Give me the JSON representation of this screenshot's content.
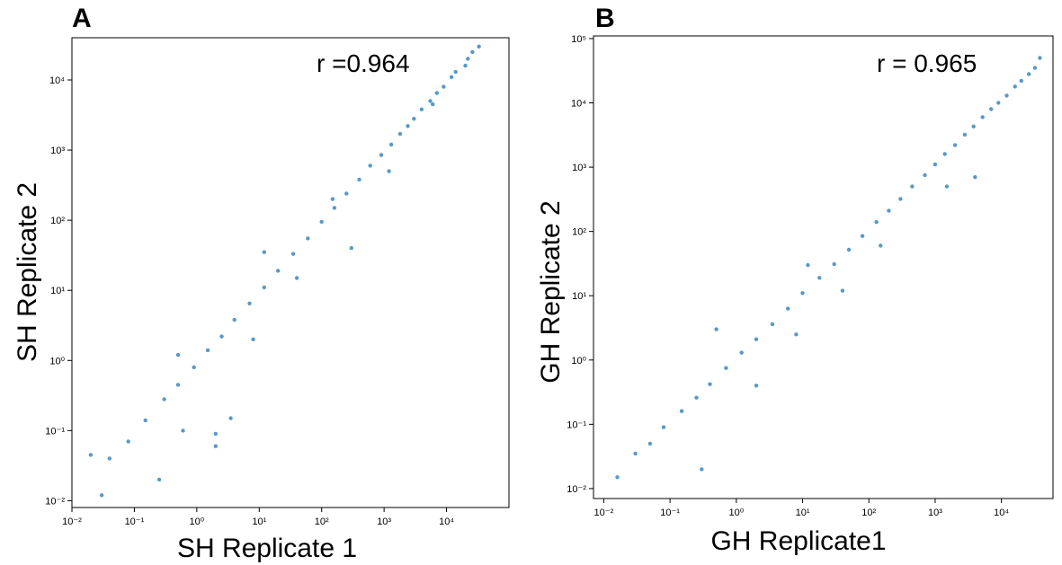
{
  "figure": {
    "panels": [
      {
        "label": "A",
        "annotation": "r =0.964"
      },
      {
        "label": "B",
        "annotation": "r = 0.965"
      }
    ]
  },
  "chart_data": [
    {
      "type": "scatter",
      "panel_label": "A",
      "xlabel": "SH Replicate 1",
      "ylabel": "SH Replicate 2",
      "annotation": "r =0.964",
      "xscale": "log",
      "yscale": "log",
      "xlim": [
        0.01,
        100000
      ],
      "ylim": [
        0.008,
        40000
      ],
      "x_ticks": [
        0.01,
        0.1,
        1,
        10,
        100,
        1000,
        10000
      ],
      "y_ticks": [
        0.01,
        0.1,
        1,
        10,
        100,
        1000,
        10000
      ],
      "grid": false,
      "color": "#1f77b4",
      "correlation_r": 0.964,
      "series": [
        {
          "x": [
            33000,
            26000,
            22000,
            20000,
            14000,
            12000,
            9000,
            7000,
            5500,
            4000,
            3000,
            2400,
            1800,
            1300,
            900,
            600,
            400,
            250,
            160,
            100,
            60,
            35,
            20,
            12,
            7,
            4,
            2.5,
            1.5,
            0.9,
            0.5,
            0.3,
            0.15,
            0.08,
            0.04,
            0.02,
            0.03,
            1200,
            6000,
            3.5,
            300,
            0.25,
            0.6,
            2.0,
            8.0,
            40,
            150,
            12,
            0.5,
            2
          ],
          "y": [
            30000,
            25000,
            20000,
            16000,
            13000,
            11000,
            8000,
            6500,
            5000,
            3800,
            2800,
            2200,
            1700,
            1200,
            850,
            600,
            380,
            240,
            150,
            95,
            55,
            33,
            19,
            11,
            6.5,
            3.8,
            2.2,
            1.4,
            0.8,
            0.45,
            0.28,
            0.14,
            0.07,
            0.04,
            0.045,
            0.012,
            500,
            4500,
            0.15,
            40,
            0.02,
            0.1,
            0.09,
            2.0,
            15,
            200,
            35,
            1.2,
            0.06
          ]
        }
      ]
    },
    {
      "type": "scatter",
      "panel_label": "B",
      "xlabel": "GH Replicate1",
      "ylabel": "GH Replicate 2",
      "annotation": "r = 0.965",
      "xscale": "log",
      "yscale": "log",
      "xlim": [
        0.007,
        60000
      ],
      "ylim": [
        0.007,
        110000
      ],
      "x_ticks": [
        0.01,
        0.1,
        1,
        10,
        100,
        1000,
        10000
      ],
      "y_ticks": [
        0.01,
        0.1,
        1,
        10,
        100,
        1000,
        10000,
        100000
      ],
      "grid": false,
      "color": "#1f77b4",
      "correlation_r": 0.965,
      "series": [
        {
          "x": [
            38000,
            32000,
            26000,
            20000,
            16000,
            12000,
            9000,
            7000,
            5200,
            3800,
            2800,
            2000,
            1400,
            1000,
            700,
            450,
            300,
            200,
            130,
            80,
            50,
            30,
            18,
            10,
            6,
            3.5,
            2,
            1.2,
            0.7,
            0.4,
            0.25,
            0.15,
            0.08,
            0.05,
            0.03,
            0.016,
            1500,
            4000,
            0.3,
            0.5,
            2,
            8,
            40,
            150,
            12
          ],
          "y": [
            50000,
            35000,
            28000,
            22000,
            18000,
            13000,
            10000,
            8000,
            6000,
            4300,
            3200,
            2200,
            1600,
            1100,
            750,
            500,
            320,
            210,
            140,
            85,
            52,
            31,
            19,
            11,
            6.3,
            3.6,
            2.1,
            1.3,
            0.75,
            0.42,
            0.26,
            0.16,
            0.09,
            0.05,
            0.035,
            0.015,
            500,
            700,
            0.02,
            3,
            0.4,
            2.5,
            12,
            60,
            30
          ]
        }
      ]
    }
  ]
}
